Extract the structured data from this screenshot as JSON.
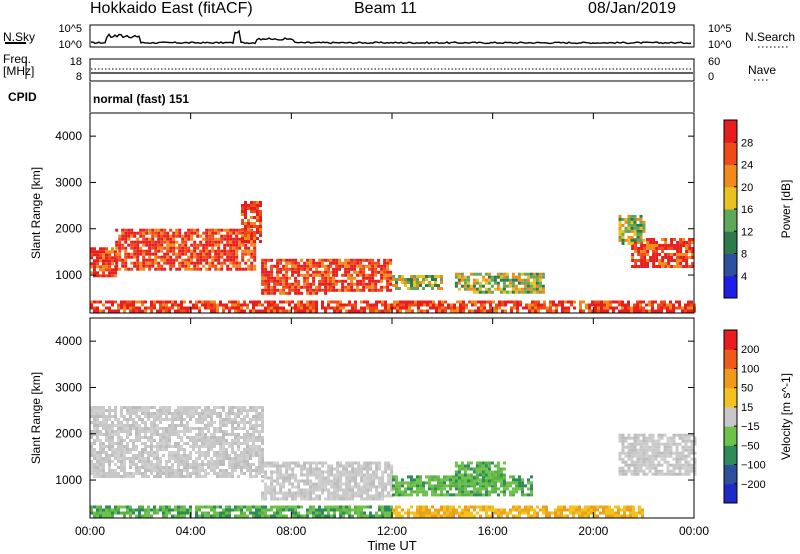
{
  "header": {
    "station": "Hokkaido East (fitACF)",
    "beam": "Beam 11",
    "date": "08/Jan/2019"
  },
  "strip": {
    "nsky_label": "N.Sky",
    "nsearch_label": "N.Search",
    "noise_ticks_left": [
      "10^5",
      "10^0"
    ],
    "noise_ticks_right": [
      "10^5",
      "10^0"
    ],
    "freq_label": "Freq.",
    "freq_unit": "[MHz]",
    "freq_ticks": [
      "18",
      "8"
    ],
    "nave_label": "Nave",
    "nave_ticks": [
      "60",
      "0"
    ],
    "cpid_label": "CPID",
    "cpid_value": "normal (fast) 151"
  },
  "chart_data": [
    {
      "type": "heatmap",
      "panel": "power",
      "ylabel": "Slant Range [km]",
      "x_ticks": [
        "00:00",
        "04:00",
        "08:00",
        "12:00",
        "16:00",
        "20:00",
        "00:00"
      ],
      "x_hours": [
        0,
        4,
        8,
        12,
        16,
        20,
        24
      ],
      "y_ticks": [
        1000,
        2000,
        3000,
        4000
      ],
      "ylim": [
        180,
        4500
      ],
      "xlim": [
        0,
        24
      ],
      "colorbar": {
        "label": "Power [dB]",
        "ticks": [
          "4",
          "8",
          "12",
          "16",
          "20",
          "24",
          "28"
        ],
        "colors": [
          "#1e1ee6",
          "#2c4f9e",
          "#2e7a4a",
          "#5ea85a",
          "#e8c21e",
          "#f08a1a",
          "#ef4a1a",
          "#e81e1e"
        ]
      },
      "regions": [
        {
          "t0": 0.0,
          "t1": 1.0,
          "r0": 1000,
          "r1": 1600,
          "level": "high"
        },
        {
          "t0": 1.0,
          "t1": 6.5,
          "r0": 1100,
          "r1": 2000,
          "level": "high"
        },
        {
          "t0": 6.0,
          "t1": 6.8,
          "r0": 1700,
          "r1": 2600,
          "level": "high"
        },
        {
          "t0": 6.8,
          "t1": 9.5,
          "r0": 600,
          "r1": 1350,
          "level": "high"
        },
        {
          "t0": 9.5,
          "t1": 12.0,
          "r0": 700,
          "r1": 1350,
          "level": "high"
        },
        {
          "t0": 12.0,
          "t1": 14.0,
          "r0": 700,
          "r1": 1000,
          "level": "mid"
        },
        {
          "t0": 14.5,
          "t1": 18.0,
          "r0": 650,
          "r1": 1050,
          "level": "mid"
        },
        {
          "t0": 0.0,
          "t1": 24.0,
          "r0": 200,
          "r1": 450,
          "level": "high"
        },
        {
          "t0": 21.5,
          "t1": 24.0,
          "r0": 1200,
          "r1": 1800,
          "level": "high"
        },
        {
          "t0": 21.0,
          "t1": 22.0,
          "r0": 1700,
          "r1": 2300,
          "level": "mid"
        }
      ]
    },
    {
      "type": "heatmap",
      "panel": "velocity",
      "ylabel": "Slant Range [km]",
      "xlabel": "Time UT",
      "x_ticks": [
        "00:00",
        "04:00",
        "08:00",
        "12:00",
        "16:00",
        "20:00",
        "00:00"
      ],
      "x_hours": [
        0,
        4,
        8,
        12,
        16,
        20,
        24
      ],
      "y_ticks": [
        1000,
        2000,
        3000,
        4000
      ],
      "ylim": [
        180,
        4500
      ],
      "xlim": [
        0,
        24
      ],
      "colorbar": {
        "label": "Velocity [m s^-1]",
        "ticks": [
          "200",
          "100",
          "50",
          "15",
          "−15",
          "−50",
          "−100",
          "−200"
        ],
        "colors": [
          "#1e2ac8",
          "#2c4f9e",
          "#2e8a5a",
          "#6cc24a",
          "#c8c8c8",
          "#f4c21e",
          "#f09a1a",
          "#ef5a1a",
          "#e81e1e"
        ]
      },
      "regions": [
        {
          "t0": 0.0,
          "t1": 6.8,
          "r0": 1100,
          "r1": 2600,
          "level": "gray"
        },
        {
          "t0": 6.8,
          "t1": 12.0,
          "r0": 600,
          "r1": 1400,
          "level": "gray"
        },
        {
          "t0": 12.0,
          "t1": 17.5,
          "r0": 650,
          "r1": 1100,
          "level": "green"
        },
        {
          "t0": 14.5,
          "t1": 16.5,
          "r0": 900,
          "r1": 1400,
          "level": "green"
        },
        {
          "t0": 0.0,
          "t1": 12.0,
          "r0": 200,
          "r1": 450,
          "level": "green"
        },
        {
          "t0": 12.0,
          "t1": 22.0,
          "r0": 200,
          "r1": 450,
          "level": "orange"
        },
        {
          "t0": 21.0,
          "t1": 24.0,
          "r0": 1100,
          "r1": 2000,
          "level": "gray"
        }
      ]
    }
  ]
}
